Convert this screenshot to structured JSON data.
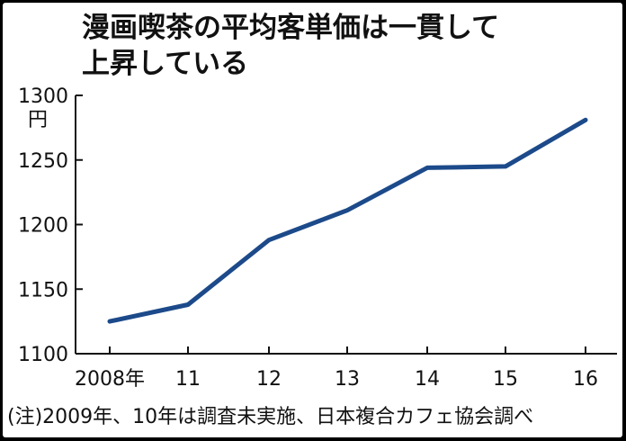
{
  "chart_data": {
    "type": "line",
    "title_lines": [
      "漫画喫茶の平均客単価は一貫して",
      "上昇している"
    ],
    "unit": "円",
    "categories": [
      "2008年",
      "11",
      "12",
      "13",
      "14",
      "15",
      "16"
    ],
    "y_ticks": [
      "1300",
      "1250",
      "1200",
      "1150",
      "1100"
    ],
    "series": [
      {
        "values": [
          1125,
          1138,
          1188,
          1211,
          1244,
          1245,
          1281
        ]
      }
    ],
    "ylim": [
      1100,
      1300
    ],
    "grid": false,
    "line_color": "#1c4a8a",
    "note": "(注)2009年、10年は調査未実施、日本複合カフェ協会調べ"
  }
}
